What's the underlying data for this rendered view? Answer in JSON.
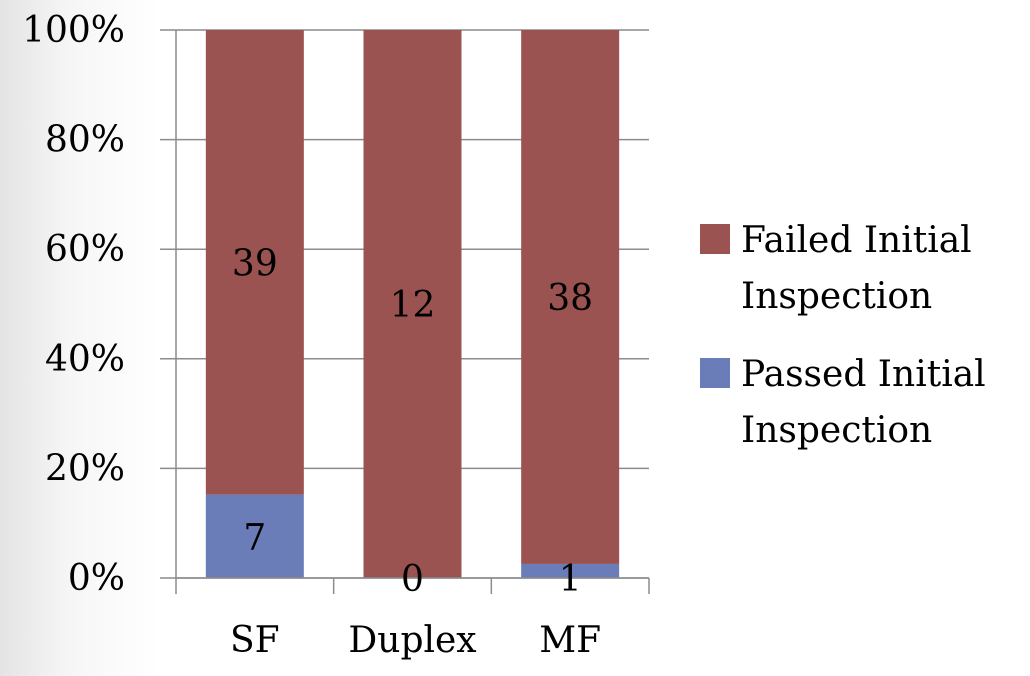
{
  "chart_data": {
    "type": "bar",
    "stacked": true,
    "percent_stacked": true,
    "categories": [
      "SF",
      "Duplex",
      "MF"
    ],
    "series": [
      {
        "name": "Passed Initial Inspection",
        "values": [
          7,
          0,
          1
        ],
        "color": "#6a7db8"
      },
      {
        "name": "Failed Initial Inspection",
        "values": [
          39,
          12,
          38
        ],
        "color": "#9b5352"
      }
    ],
    "y_ticks": [
      "0%",
      "20%",
      "40%",
      "60%",
      "80%",
      "100%"
    ],
    "ylim": [
      0,
      100
    ],
    "legend_position": "right",
    "legend_order": [
      1,
      0
    ],
    "grid": true
  }
}
